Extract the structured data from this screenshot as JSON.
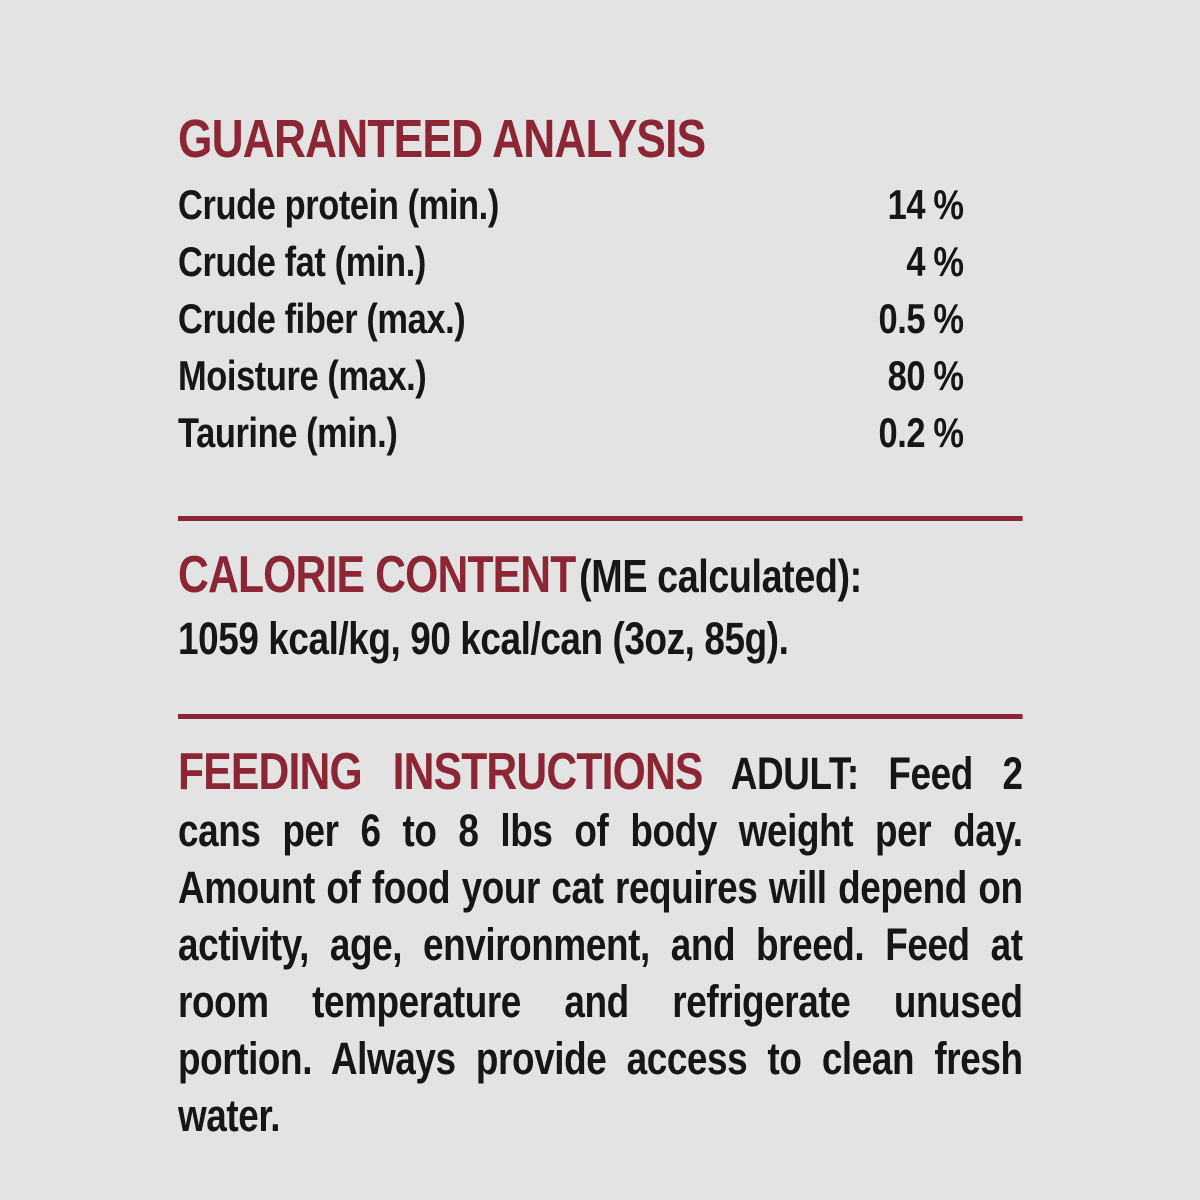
{
  "label": {
    "colors": {
      "background": "#e3e3e4",
      "accent": "#8c2634",
      "text": "#161616"
    },
    "guaranteed_analysis": {
      "title": "GUARANTEED ANALYSIS",
      "rows": [
        {
          "name": "Crude protein (min.)",
          "value": "14",
          "unit": "%"
        },
        {
          "name": "Crude fat (min.)",
          "value": "4",
          "unit": "%"
        },
        {
          "name": "Crude fiber (max.)",
          "value": "0.5",
          "unit": "%"
        },
        {
          "name": "Moisture (max.)",
          "value": "80",
          "unit": "%"
        },
        {
          "name": "Taurine (min.)",
          "value": "0.2",
          "unit": "%"
        }
      ]
    },
    "calorie_content": {
      "title": "CALORIE CONTENT",
      "subtitle": "(ME calculated):",
      "detail": "1059 kcal/kg, 90 kcal/can (3oz, 85g)."
    },
    "feeding_instructions": {
      "title": "FEEDING INSTRUCTIONS",
      "body": "ADULT: Feed 2 cans per 6 to 8 lbs of body weight per day. Amount of food your cat requires will depend on activity, age, environment, and breed. Feed at room temperature and refrigerate unused portion. Always provide access to clean fresh water."
    }
  }
}
